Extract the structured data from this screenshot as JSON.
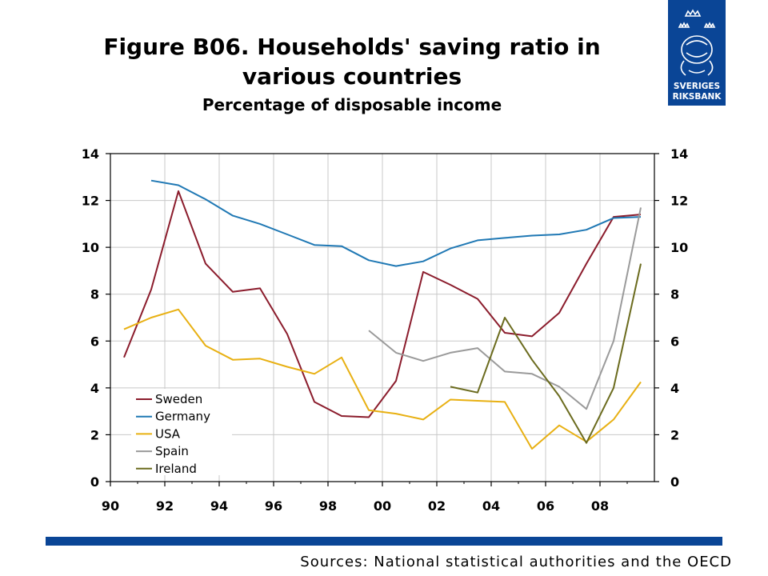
{
  "header": {
    "title": "Figure B06. Households' saving ratio in various countries",
    "subtitle": "Percentage of disposable income"
  },
  "logo": {
    "line1": "SVERIGES",
    "line2": "RIKSBANK",
    "color": "#0a4596"
  },
  "footer": {
    "source": "Sources: National statistical authorities and the OECD",
    "bar_color": "#0a4596"
  },
  "chart_data": {
    "type": "line",
    "title": "Figure B06. Households' saving ratio in various countries",
    "subtitle": "Percentage of disposable income",
    "x_tick_labels": [
      "90",
      "92",
      "94",
      "96",
      "98",
      "00",
      "02",
      "04",
      "06",
      "08"
    ],
    "xlim": [
      1990,
      2010
    ],
    "ylim": [
      0,
      14
    ],
    "y_ticks": [
      0,
      2,
      4,
      6,
      8,
      10,
      12,
      14
    ],
    "y_axis_right": true,
    "grid": true,
    "legend_position": "bottom-left",
    "series": [
      {
        "name": "Sweden",
        "color": "#8b1c2c",
        "x": [
          1990.5,
          1991.5,
          1992.5,
          1993.5,
          1994.5,
          1995.5,
          1996.5,
          1997.5,
          1998.5,
          1999.5,
          2000.5,
          2001.5,
          2002.5,
          2003.5,
          2004.5,
          2005.5,
          2006.5,
          2007.5,
          2008.5,
          2009.5
        ],
        "y": [
          5.3,
          8.2,
          12.4,
          9.3,
          8.1,
          8.25,
          6.3,
          3.4,
          2.8,
          2.75,
          4.3,
          8.95,
          8.4,
          7.8,
          6.35,
          6.2,
          7.2,
          9.3,
          11.3,
          11.4
        ]
      },
      {
        "name": "Germany",
        "color": "#1f78b4",
        "x": [
          1991.5,
          1992.5,
          1993.5,
          1994.5,
          1995.5,
          1996.5,
          1997.5,
          1998.5,
          1999.5,
          2000.5,
          2001.5,
          2002.5,
          2003.5,
          2004.5,
          2005.5,
          2006.5,
          2007.5,
          2008.5,
          2009.5
        ],
        "y": [
          12.85,
          12.65,
          12.05,
          11.35,
          11.0,
          10.55,
          10.1,
          10.05,
          9.45,
          9.2,
          9.4,
          9.95,
          10.3,
          10.4,
          10.5,
          10.55,
          10.75,
          11.25,
          11.3
        ]
      },
      {
        "name": "USA",
        "color": "#e8b012",
        "x": [
          1990.5,
          1991.5,
          1992.5,
          1993.5,
          1994.5,
          1995.5,
          1996.5,
          1997.5,
          1998.5,
          1999.5,
          2000.5,
          2001.5,
          2002.5,
          2003.5,
          2004.5,
          2005.5,
          2006.5,
          2007.5,
          2008.5,
          2009.5
        ],
        "y": [
          6.5,
          7.0,
          7.35,
          5.8,
          5.2,
          5.25,
          4.9,
          4.6,
          5.3,
          3.05,
          2.9,
          2.65,
          3.5,
          3.45,
          3.4,
          1.4,
          2.4,
          1.7,
          2.65,
          4.25
        ]
      },
      {
        "name": "Spain",
        "color": "#9a9a9a",
        "x": [
          1999.5,
          2000.5,
          2001.5,
          2002.5,
          2003.5,
          2004.5,
          2005.5,
          2006.5,
          2007.5,
          2008.5,
          2009.5
        ],
        "y": [
          6.45,
          5.5,
          5.15,
          5.5,
          5.7,
          4.7,
          4.6,
          4.05,
          3.1,
          6.0,
          11.7
        ]
      },
      {
        "name": "Ireland",
        "color": "#6b6b1e",
        "x": [
          2002.5,
          2003.5,
          2004.5,
          2005.5,
          2006.5,
          2007.5,
          2008.5,
          2009.5
        ],
        "y": [
          4.05,
          3.8,
          7.0,
          5.2,
          3.65,
          1.65,
          4.0,
          9.3
        ]
      }
    ]
  }
}
